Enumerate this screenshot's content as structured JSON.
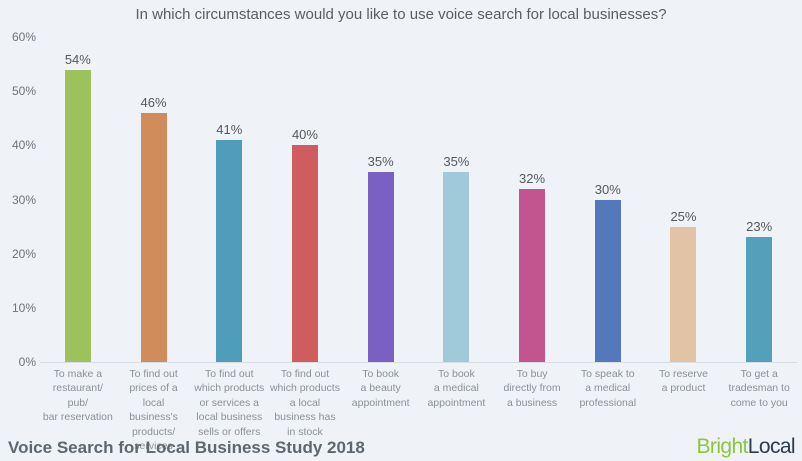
{
  "title": "In which circumstances would you like to use voice search for local businesses?",
  "colors": {
    "background": "#eff2f6",
    "baseline": "#d9dee4",
    "axis_text": "#6e747b",
    "value_label_text": "#55595e",
    "category_label_text": "#8b9199",
    "brand_green": "#8dc63f",
    "brand_navy": "#2c3b4e"
  },
  "chart_data": {
    "type": "bar",
    "title": "In which circumstances would you like to use voice search for local businesses?",
    "categories": [
      "To make a\nrestaurant/ pub/\nbar reservation",
      "To find out\nprices of a\nlocal business's\nproducts/ services",
      "To find out\nwhich products\nor services a\nlocal business\nsells or offers",
      "To find out\nwhich products\na local\nbusiness has\nin stock",
      "To book\na beauty\nappointment",
      "To book\na medical\nappointment",
      "To buy\ndirectly from\na business",
      "To speak to\na medical\nprofessional",
      "To reserve\na product",
      "To get a\ntradesman to\ncome to you"
    ],
    "values": [
      54,
      46,
      41,
      40,
      35,
      35,
      32,
      30,
      25,
      23
    ],
    "value_suffix": "%",
    "bar_colors": [
      "#9ec25b",
      "#d08d5b",
      "#4f9dba",
      "#cf5d60",
      "#7b60c4",
      "#a0cad9",
      "#c2548f",
      "#5378bb",
      "#e3c3a6",
      "#54a0ba"
    ],
    "xlabel": "",
    "ylabel": "",
    "ylim": [
      0,
      60
    ],
    "yticks": [
      60,
      50,
      40,
      30,
      20,
      10,
      0
    ],
    "ytick_suffix": "%",
    "grid": false,
    "legend": false
  },
  "footer": {
    "source_label": "Voice Search for Local Business Study 2018",
    "brand_part1": "Bright",
    "brand_part2": "Local"
  }
}
